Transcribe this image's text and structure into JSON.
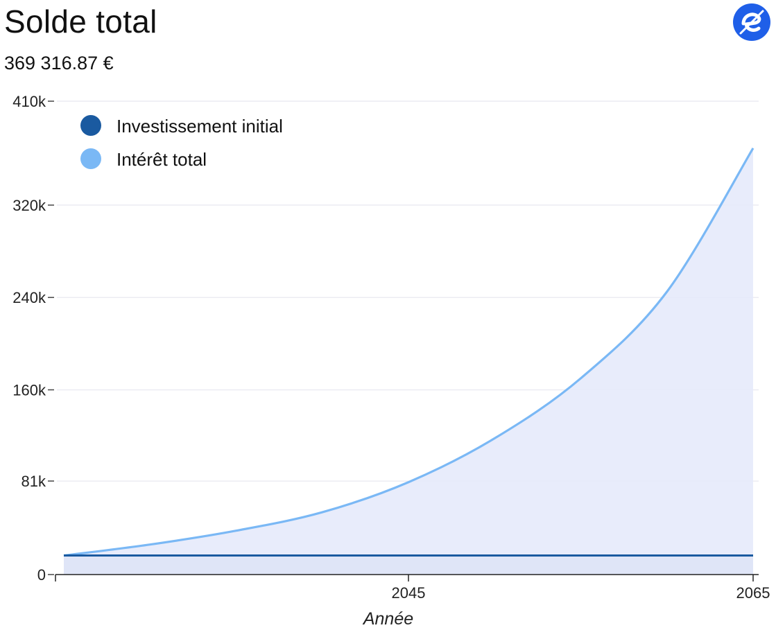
{
  "header": {
    "title": "Solde total",
    "amount": "369 316.87 €"
  },
  "logo": {
    "icon": "e-logo-icon",
    "color": "#1f5fe8"
  },
  "chart_data": {
    "type": "area",
    "x_label": "Année",
    "x_range": [
      2025,
      2065
    ],
    "x_tick_labels": [
      "2045",
      "2065"
    ],
    "x_tick_values": [
      2045,
      2065
    ],
    "y_range": [
      0,
      410000
    ],
    "y_tick_values": [
      0,
      81000,
      160000,
      240000,
      320000,
      410000
    ],
    "y_tick_labels": [
      "0",
      "81k",
      "160k",
      "240k",
      "320k",
      "410k"
    ],
    "grid": true,
    "legend_position": "top-left",
    "series": [
      {
        "name": "Investissement initial",
        "color": "#1a5aa0",
        "x": [
          2025,
          2065
        ],
        "values": [
          16500,
          16500
        ]
      },
      {
        "name": "Intérêt total",
        "color": "#7ab8f5",
        "x": [
          2025,
          2030,
          2035,
          2040,
          2045,
          2050,
          2055,
          2060,
          2065
        ],
        "values": [
          16500,
          26000,
          38000,
          54000,
          80000,
          118000,
          170000,
          245000,
          369317
        ]
      }
    ]
  }
}
